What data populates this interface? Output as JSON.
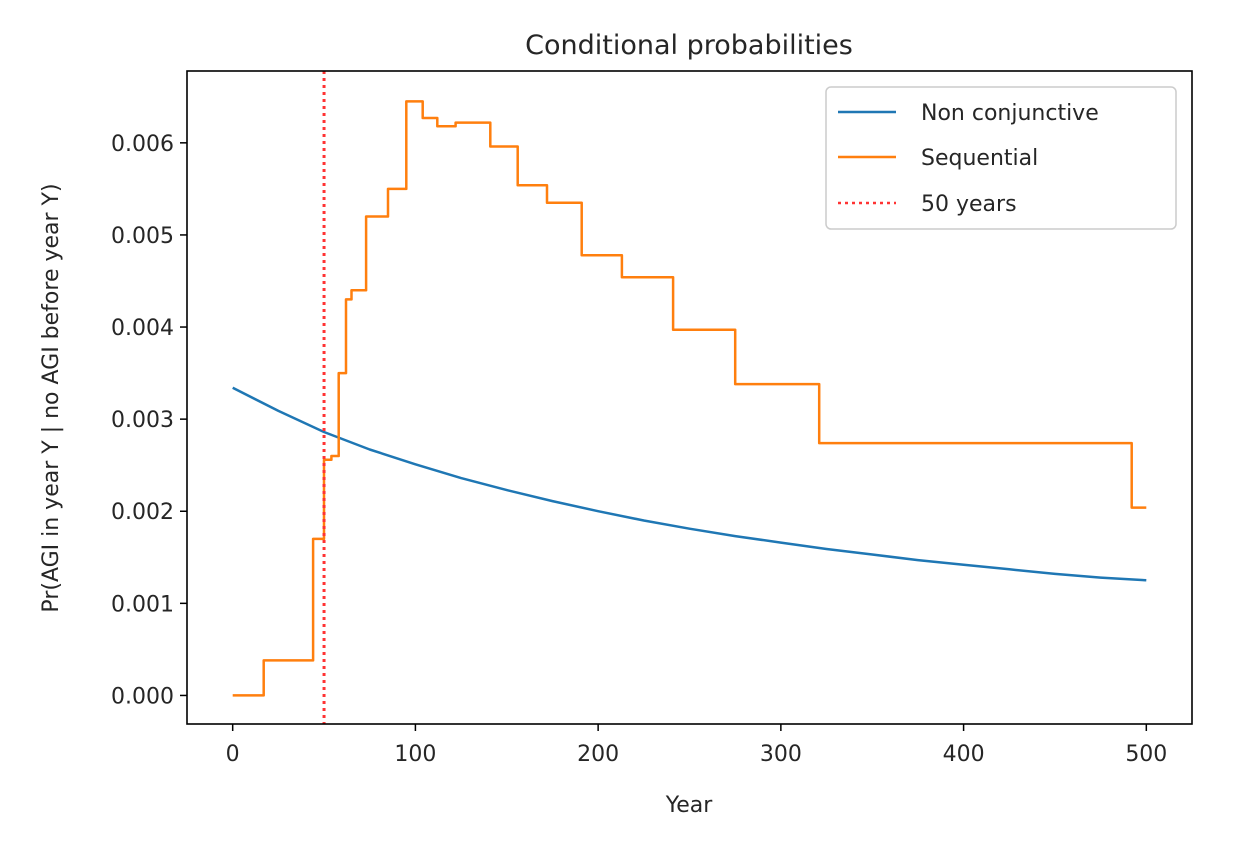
{
  "chart_data": {
    "type": "line",
    "title": "Conditional probabilities",
    "xlabel": "Year",
    "ylabel": "Pr(AGI in year Y | no AGI before year Y)",
    "xlim": [
      -25,
      525
    ],
    "ylim": [
      -0.00031,
      0.00678
    ],
    "xticks": [
      0,
      100,
      200,
      300,
      400,
      500
    ],
    "xtick_labels": [
      "0",
      "100",
      "200",
      "300",
      "400",
      "500"
    ],
    "yticks": [
      0,
      0.001,
      0.002,
      0.003,
      0.004,
      0.005,
      0.006
    ],
    "ytick_labels": [
      "0.000",
      "0.001",
      "0.002",
      "0.003",
      "0.004",
      "0.005",
      "0.006"
    ],
    "legend_position": "top-right",
    "series": [
      {
        "name": "Non conjunctive",
        "style": "solid",
        "color": "#1f77b4",
        "x": [
          0,
          25,
          50,
          75,
          100,
          125,
          150,
          175,
          200,
          225,
          250,
          275,
          300,
          325,
          350,
          375,
          400,
          425,
          450,
          475,
          500
        ],
        "y": [
          0.00334,
          0.00309,
          0.00286,
          0.00267,
          0.00251,
          0.00236,
          0.00223,
          0.00211,
          0.002,
          0.0019,
          0.00181,
          0.00173,
          0.00166,
          0.00159,
          0.00153,
          0.00147,
          0.00142,
          0.00137,
          0.00132,
          0.00128,
          0.00125
        ]
      },
      {
        "name": "Sequential",
        "style": "steps",
        "color": "#ff7f0e",
        "x": [
          0,
          17,
          17,
          44,
          44,
          48,
          48,
          50,
          50,
          54,
          54,
          58,
          58,
          62,
          62,
          65,
          65,
          68,
          68,
          73,
          73,
          75,
          75,
          85,
          85,
          91,
          91,
          95,
          95,
          104,
          104,
          112,
          112,
          122,
          122,
          141,
          141,
          156,
          156,
          172,
          172,
          191,
          191,
          213,
          213,
          241,
          241,
          275,
          275,
          321,
          321,
          387,
          387,
          492,
          492,
          500
        ],
        "y": [
          0.0,
          0.0,
          0.00038,
          0.00038,
          0.0017,
          0.0017,
          0.0017,
          0.0017,
          0.00256,
          0.00256,
          0.0026,
          0.0026,
          0.0035,
          0.0035,
          0.0043,
          0.0043,
          0.0044,
          0.0044,
          0.0044,
          0.0044,
          0.0052,
          0.0052,
          0.0052,
          0.0052,
          0.0055,
          0.0055,
          0.0055,
          0.0055,
          0.00645,
          0.00645,
          0.00627,
          0.00627,
          0.00618,
          0.00618,
          0.00622,
          0.00622,
          0.00596,
          0.00596,
          0.00554,
          0.00554,
          0.00535,
          0.00535,
          0.00478,
          0.00478,
          0.00454,
          0.00454,
          0.00397,
          0.00397,
          0.00338,
          0.00338,
          0.00274,
          0.00274,
          0.00274,
          0.00274,
          0.00204,
          0.00204
        ]
      },
      {
        "name": "50 years",
        "style": "dotted",
        "color": "#ff3333",
        "x_value": 50
      }
    ]
  }
}
